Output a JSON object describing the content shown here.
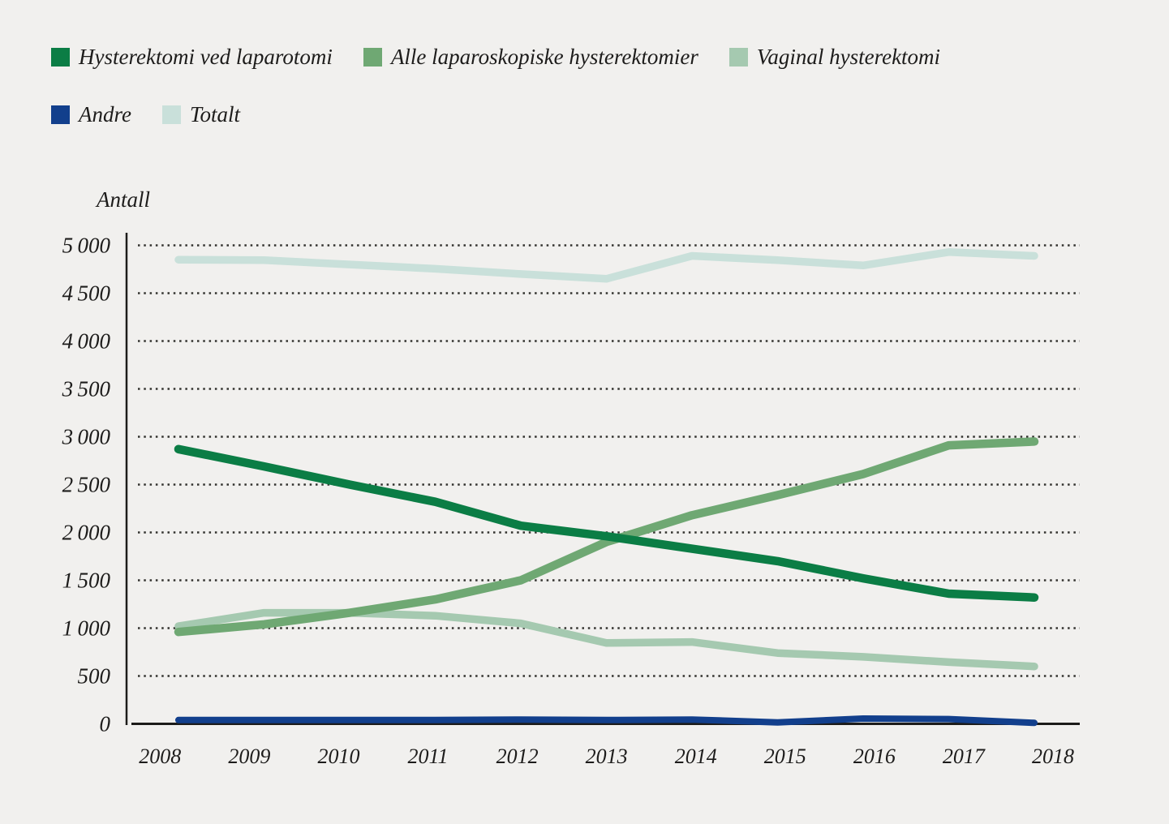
{
  "figure": {
    "background": "#f1f0ee",
    "text_color": "#1d1c1b",
    "axis_color": "#1d1c1a",
    "grid_color": "#33322f"
  },
  "chart_data": {
    "type": "line",
    "y_axis_title": "Antall",
    "categories": [
      "2008",
      "2009",
      "2010",
      "2011",
      "2012",
      "2013",
      "2014",
      "2015",
      "2016",
      "2017",
      "2018"
    ],
    "series": [
      {
        "name": "Hysterektomi ved laparotomi",
        "color": "#0b7d45",
        "values": [
          2870,
          2690,
          2500,
          2320,
          2070,
          1960,
          1830,
          1700,
          1520,
          1360,
          1320
        ]
      },
      {
        "name": "Alle laparoskopiske hysterektomier",
        "color": "#6fa873",
        "values": [
          960,
          1040,
          1160,
          1300,
          1500,
          1900,
          2180,
          2390,
          2610,
          2910,
          2950
        ]
      },
      {
        "name": "Vaginal hysterektomi",
        "color": "#a5c9b0",
        "values": [
          1020,
          1160,
          1160,
          1130,
          1050,
          845,
          855,
          740,
          700,
          645,
          600
        ]
      },
      {
        "name": "Andre",
        "color": "#123f8c",
        "values": [
          40,
          40,
          40,
          40,
          45,
          40,
          45,
          15,
          55,
          50,
          10
        ]
      },
      {
        "name": "Totalt",
        "color": "#c9e0da",
        "values": [
          4850,
          4845,
          4800,
          4755,
          4700,
          4650,
          4890,
          4845,
          4790,
          4930,
          4890
        ]
      }
    ],
    "y_ticks": [
      0,
      500,
      1000,
      1500,
      2000,
      2500,
      3000,
      3500,
      4000,
      4500,
      5000
    ],
    "y_tick_labels": [
      "0",
      "500",
      "1 000",
      "1 500",
      "2 000",
      "2 500",
      "3 000",
      "3 500",
      "4 000",
      "4 500",
      "5 000"
    ],
    "ylim": [
      0,
      5000
    ],
    "xlabel": "",
    "ylabel": "Antall",
    "grid": "horizontal-dotted",
    "legend_position": "top-left"
  }
}
